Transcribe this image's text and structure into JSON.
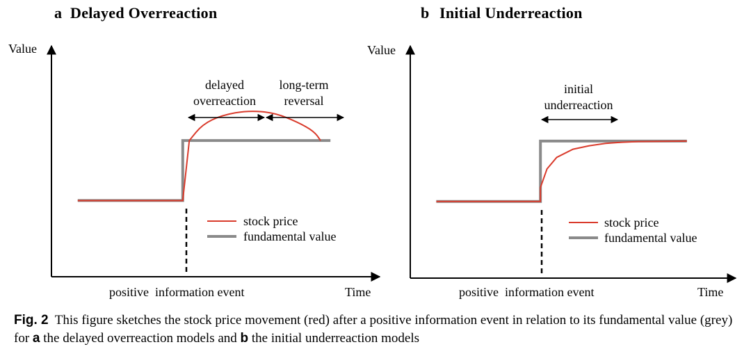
{
  "chart_data": [
    {
      "type": "line",
      "panel": "a",
      "title": "Delayed Overreaction",
      "ylabel": "Value",
      "xlabel": "Time",
      "event_label": "positive  information event",
      "annotations": [
        {
          "text_lines": [
            "delayed",
            "overreaction"
          ]
        },
        {
          "text_lines": [
            "long-term",
            "reversal"
          ]
        }
      ],
      "xlim": [
        0,
        10
      ],
      "ylim": [
        0,
        10
      ],
      "event_x": 4,
      "series": [
        {
          "name": "stock price",
          "color": "#d93a2b",
          "x": [
            0.8,
            4,
            4.2,
            4.6,
            5.2,
            6,
            6.8,
            7.5,
            8,
            8.2
          ],
          "values": [
            3.3,
            3.3,
            5.9,
            6.6,
            7.0,
            7.2,
            7.1,
            6.7,
            6.3,
            5.9
          ]
        },
        {
          "name": "fundamental value",
          "color": "#8a8a8a",
          "x": [
            0.8,
            4,
            4,
            8.5
          ],
          "values": [
            3.3,
            3.3,
            5.9,
            5.9
          ]
        }
      ],
      "legend": [
        "stock price",
        "fundamental value"
      ]
    },
    {
      "type": "line",
      "panel": "b",
      "title": "Initial Underreaction",
      "ylabel": "Value",
      "xlabel": "Time",
      "event_label": "positive  information event",
      "annotations": [
        {
          "text_lines": [
            "initial",
            "underreaction"
          ]
        }
      ],
      "xlim": [
        0,
        10
      ],
      "ylim": [
        0,
        10
      ],
      "event_x": 4,
      "series": [
        {
          "name": "stock price",
          "color": "#d93a2b",
          "x": [
            0.8,
            4,
            4,
            4.2,
            4.5,
            5,
            5.5,
            6,
            6.5,
            7,
            8.5
          ],
          "values": [
            3.3,
            3.3,
            3.9,
            4.7,
            5.2,
            5.55,
            5.7,
            5.8,
            5.85,
            5.88,
            5.9
          ]
        },
        {
          "name": "fundamental value",
          "color": "#8a8a8a",
          "x": [
            0.8,
            4,
            4,
            8.5
          ],
          "values": [
            3.3,
            3.3,
            5.9,
            5.9
          ]
        }
      ],
      "legend": [
        "stock price",
        "fundamental value"
      ]
    }
  ],
  "caption": {
    "label": "Fig. 2",
    "parts": [
      {
        "t": "This figure sketches the stock price movement (red) after a positive information event in relation to its fundamental value (grey) for ",
        "bold": false
      },
      {
        "t": "a",
        "bold": true
      },
      {
        "t": " the delayed overreaction models and ",
        "bold": false
      },
      {
        "t": "b",
        "bold": true
      },
      {
        "t": " the initial underreaction models",
        "bold": false
      }
    ]
  }
}
